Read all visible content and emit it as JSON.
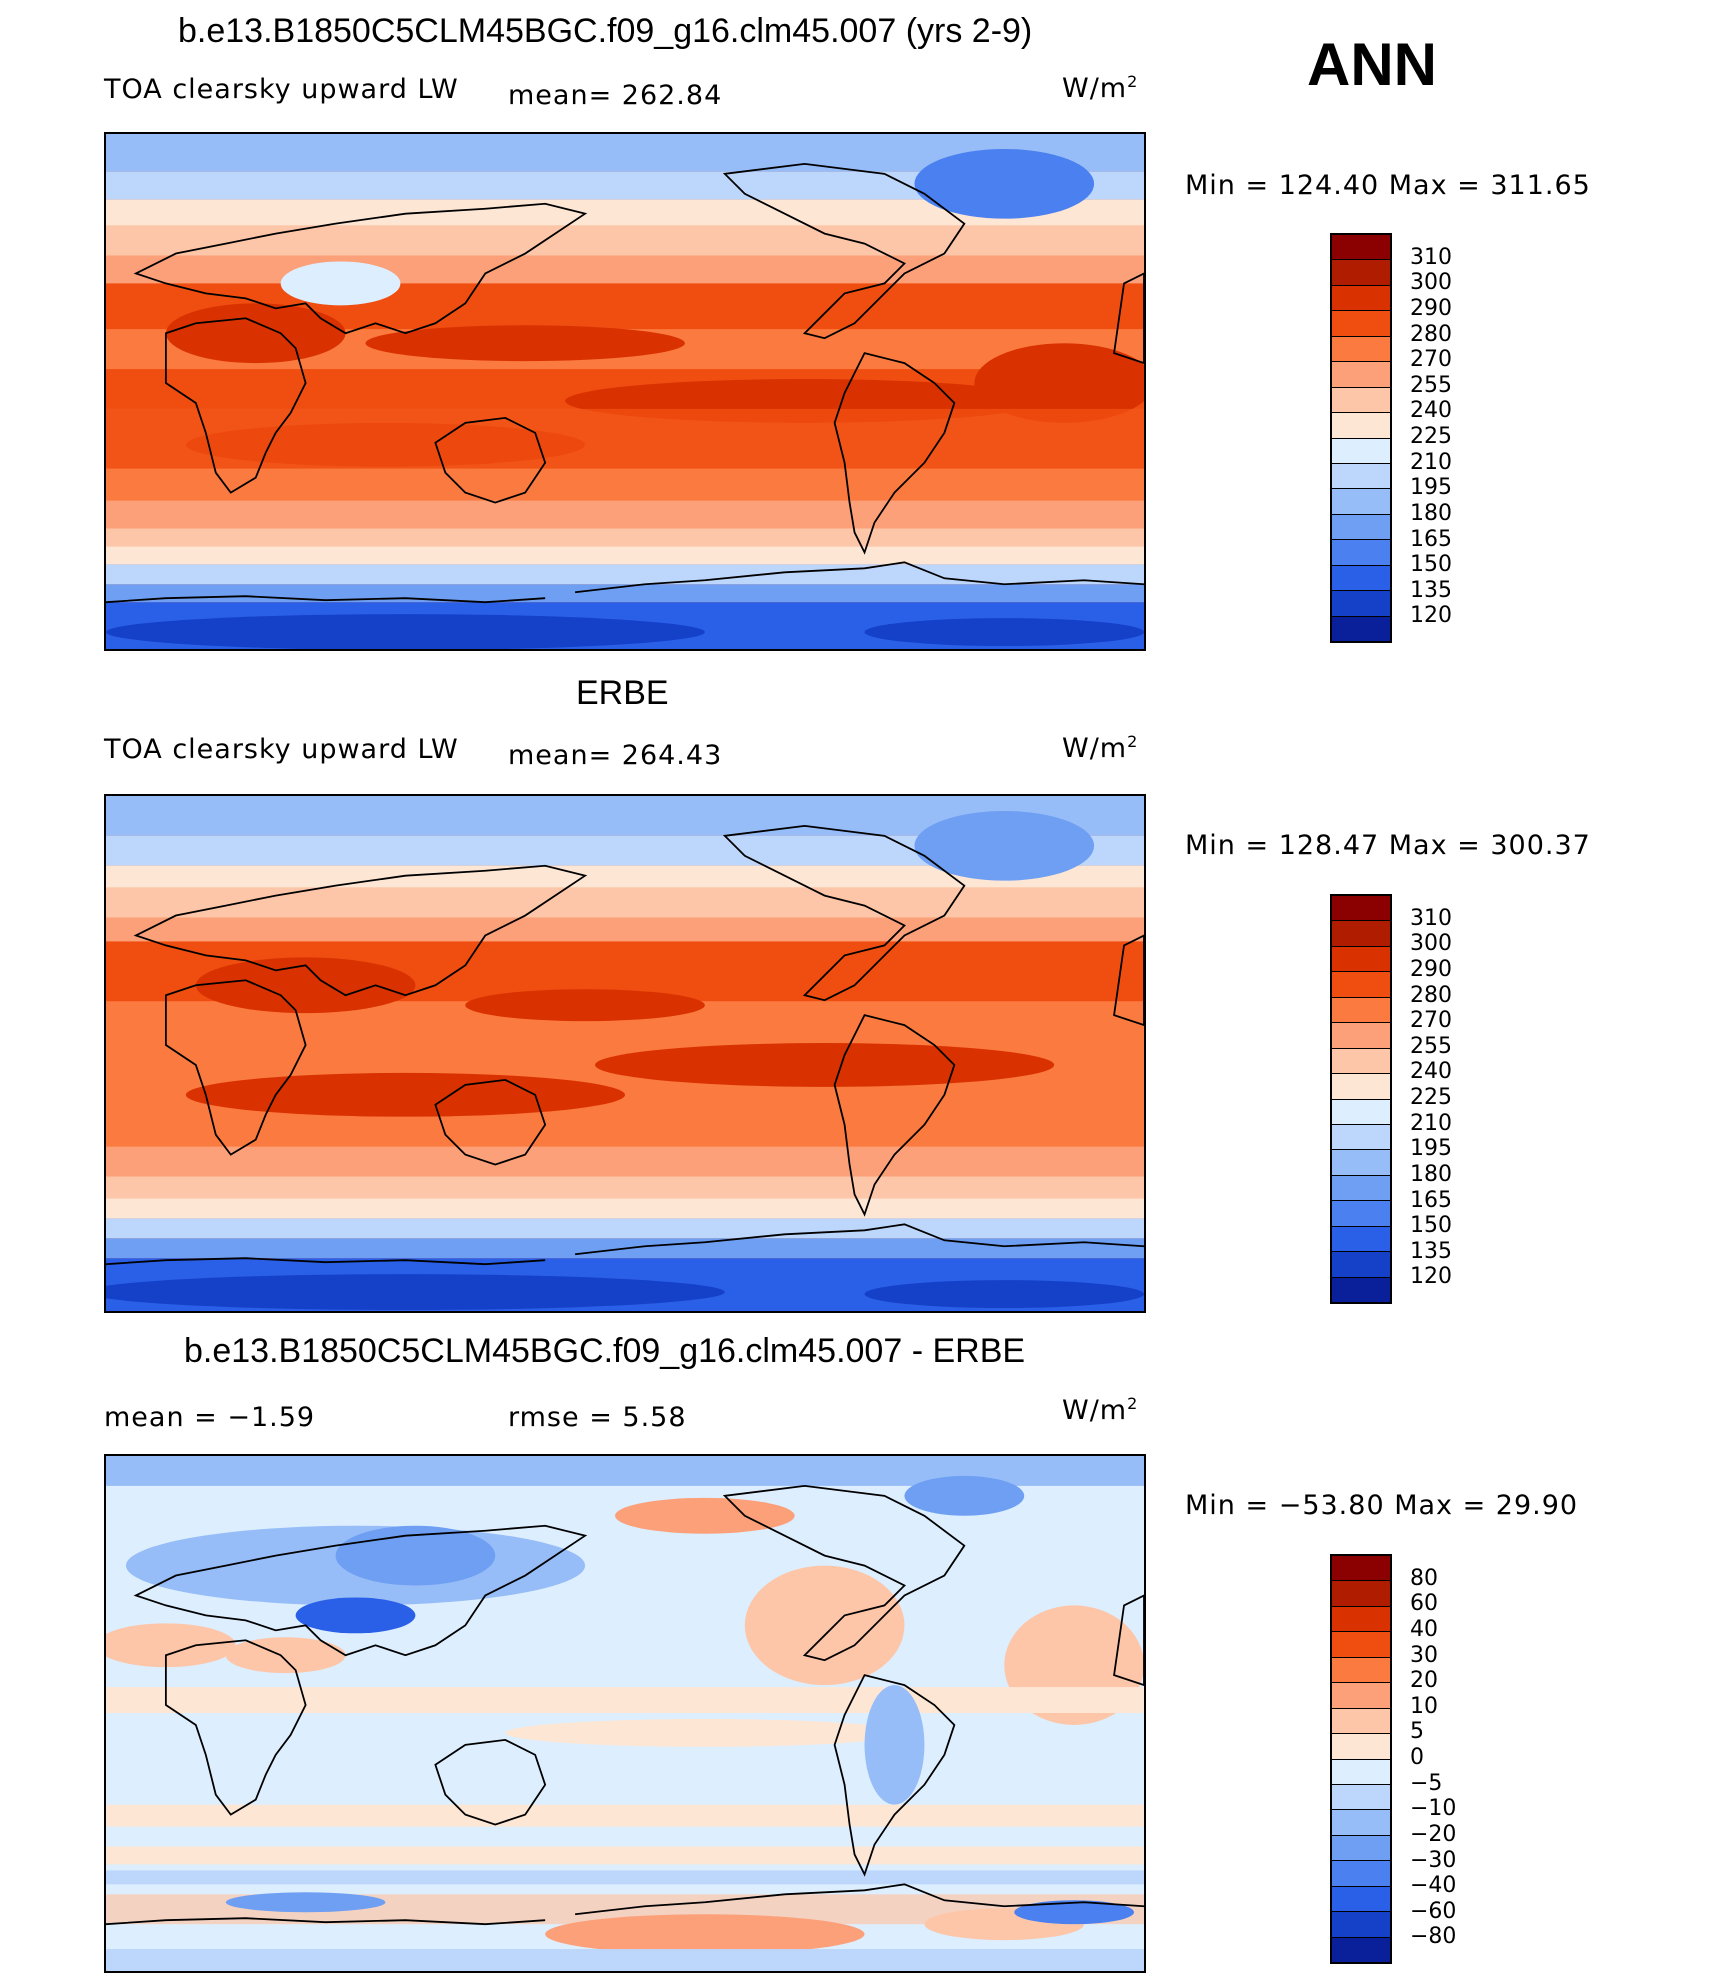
{
  "season": "ANN",
  "units_label": "W/m",
  "units_sup": "2",
  "panels": [
    {
      "title": "b.e13.B1850C5CLM45BGC.f09_g16.clm45.007 (yrs 2-9)",
      "variable": "TOA clearsky upward LW",
      "stat1": "mean= 262.84",
      "stat2": "",
      "minmax": "Min  =  124.40  Max  =  311.65",
      "levels": [
        "310",
        "300",
        "290",
        "280",
        "270",
        "255",
        "240",
        "225",
        "210",
        "195",
        "180",
        "165",
        "150",
        "135",
        "120"
      ],
      "colors": [
        "#8b0000",
        "#b01c00",
        "#d93200",
        "#f04e10",
        "#fb7a3f",
        "#fca07a",
        "#fdc6a8",
        "#fde6d4",
        "#ddeefe",
        "#bcd7fb",
        "#96bdf8",
        "#6e9ff3",
        "#4a80ef",
        "#2a5fe7",
        "#1540c8",
        "#0a209a"
      ]
    },
    {
      "title": "ERBE",
      "variable": "TOA clearsky upward LW",
      "stat1": "mean= 264.43",
      "stat2": "",
      "minmax": "Min  =  128.47  Max  =  300.37",
      "levels": [
        "310",
        "300",
        "290",
        "280",
        "270",
        "255",
        "240",
        "225",
        "210",
        "195",
        "180",
        "165",
        "150",
        "135",
        "120"
      ],
      "colors": [
        "#8b0000",
        "#b01c00",
        "#d93200",
        "#f04e10",
        "#fb7a3f",
        "#fca07a",
        "#fdc6a8",
        "#fde6d4",
        "#ddeefe",
        "#bcd7fb",
        "#96bdf8",
        "#6e9ff3",
        "#4a80ef",
        "#2a5fe7",
        "#1540c8",
        "#0a209a"
      ]
    },
    {
      "title": "b.e13.B1850C5CLM45BGC.f09_g16.clm45.007 - ERBE",
      "variable": "",
      "stat1": "mean  =    −1.59",
      "stat2": "rmse  =     5.58",
      "minmax": "Min  =  −53.80  Max  =    29.90",
      "levels": [
        "80",
        "60",
        "40",
        "30",
        "20",
        "10",
        "5",
        "0",
        "−5",
        "−10",
        "−20",
        "−30",
        "−40",
        "−60",
        "−80"
      ],
      "colors": [
        "#8b0000",
        "#b01c00",
        "#d93200",
        "#f04e10",
        "#fb7a3f",
        "#fca07a",
        "#fdc6a8",
        "#fde6d4",
        "#ddeefe",
        "#bcd7fb",
        "#96bdf8",
        "#6e9ff3",
        "#4a80ef",
        "#2a5fe7",
        "#1540c8",
        "#0a209a"
      ]
    }
  ]
}
